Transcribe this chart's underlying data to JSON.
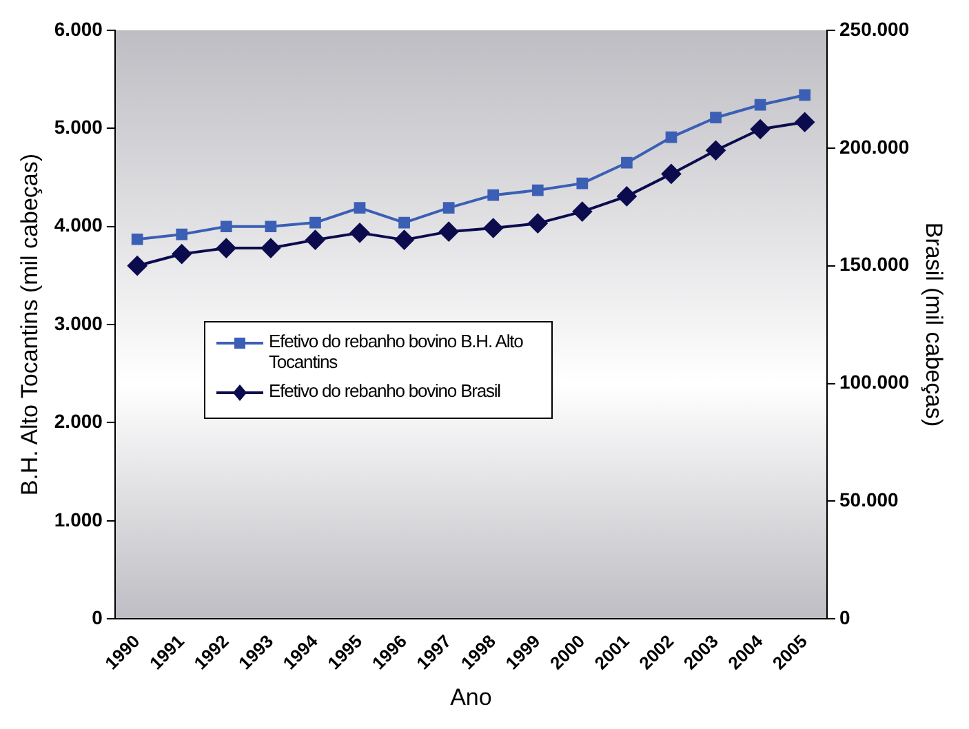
{
  "chart_data": {
    "type": "line",
    "xlabel": "Ano",
    "ylabel": "B.H. Alto Tocantins (mil cabeças)",
    "y2label": "Brasil (mil cabeças)",
    "categories": [
      "1990",
      "1991",
      "1992",
      "1993",
      "1994",
      "1995",
      "1996",
      "1997",
      "1998",
      "1999",
      "2000",
      "2001",
      "2002",
      "2003",
      "2004",
      "2005"
    ],
    "series": [
      {
        "name": "Efetivo do rebanho bovino B.H. Alto Tocantins",
        "color": "#3b5fb4",
        "marker": "square",
        "values": [
          3870,
          3920,
          4000,
          4000,
          4040,
          4190,
          4040,
          4190,
          4320,
          4370,
          4440,
          4650,
          4910,
          5110,
          5240,
          5340
        ]
      },
      {
        "name": "Efetivo do rebanho bovino Brasil",
        "color": "#0b0b4e",
        "marker": "diamond",
        "axis": "y2",
        "values": [
          150000,
          155000,
          157500,
          157500,
          161000,
          164000,
          161000,
          164500,
          166000,
          168000,
          173000,
          179500,
          189000,
          199000,
          208000,
          211000
        ]
      }
    ],
    "ylim": [
      0,
      6000
    ],
    "yticks": [
      {
        "value": 0,
        "label": "0"
      },
      {
        "value": 1000,
        "label": "1.000"
      },
      {
        "value": 2000,
        "label": "2.000"
      },
      {
        "value": 3000,
        "label": "3.000"
      },
      {
        "value": 4000,
        "label": "4.000"
      },
      {
        "value": 5000,
        "label": "5.000"
      },
      {
        "value": 6000,
        "label": "6.000"
      }
    ],
    "y2lim": [
      0,
      250000
    ],
    "y2ticks": [
      {
        "value": 0,
        "label": "0"
      },
      {
        "value": 50000,
        "label": "50.000"
      },
      {
        "value": 100000,
        "label": "100.000"
      },
      {
        "value": 150000,
        "label": "150.000"
      },
      {
        "value": 200000,
        "label": "200.000"
      },
      {
        "value": 250000,
        "label": "250.000"
      }
    ],
    "grid": false,
    "legend": "left",
    "line_style": "solid"
  }
}
